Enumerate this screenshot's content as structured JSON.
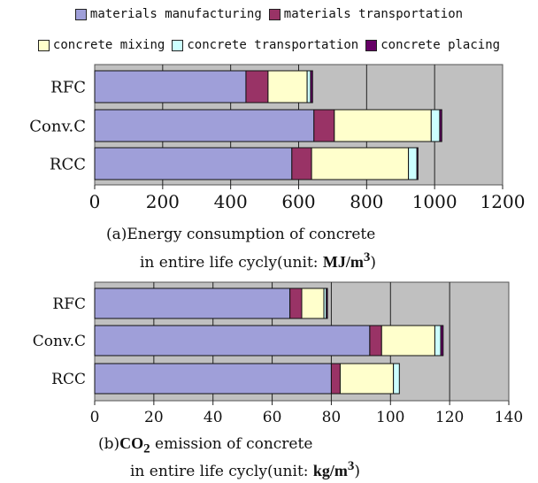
{
  "legend": [
    {
      "label": "materials manufacturing",
      "color": "#9f9fd9"
    },
    {
      "label": "materials transportation",
      "color": "#993366"
    },
    {
      "label": "concrete mixing",
      "color": "#ffffcc"
    },
    {
      "label": "concrete transportation",
      "color": "#ccffff"
    },
    {
      "label": "concrete placing",
      "color": "#660066"
    }
  ],
  "plot_background": "#c0c0c0",
  "captions": {
    "a_line1": "(a)Energy consumption of concrete",
    "a_line2_prefix": "in entire life cycly(unit: ",
    "a_unit": "MJ/m",
    "a_unit_sup": "3",
    "a_suffix": ")",
    "b_line1_prefix": "(b)",
    "b_co2": "CO",
    "b_co2_sub": "2",
    "b_line1_suffix": " emission of concrete",
    "b_line2_prefix": "in entire life cycly(unit: ",
    "b_unit": "kg/m",
    "b_unit_sup": "3",
    "b_suffix": ")"
  },
  "chart_data": [
    {
      "type": "bar",
      "orientation": "horizontal",
      "stacked": true,
      "categories": [
        "RFC",
        "Conv.C",
        "RCC"
      ],
      "series": [
        {
          "name": "materials manufacturing",
          "values": [
            445,
            645,
            580
          ]
        },
        {
          "name": "materials transportation",
          "values": [
            65,
            60,
            58
          ]
        },
        {
          "name": "concrete mixing",
          "values": [
            115,
            285,
            285
          ]
        },
        {
          "name": "concrete transportation",
          "values": [
            10,
            25,
            25
          ]
        },
        {
          "name": "concrete placing",
          "values": [
            6,
            6,
            3
          ]
        }
      ],
      "xlim": [
        0,
        1200
      ],
      "xticks": [
        "0",
        "200",
        "400",
        "600",
        "800",
        "1000",
        "1200"
      ],
      "grid": true
    },
    {
      "type": "bar",
      "orientation": "horizontal",
      "stacked": true,
      "categories": [
        "RFC",
        "Conv.C",
        "RCC"
      ],
      "series": [
        {
          "name": "materials manufacturing",
          "values": [
            66,
            93,
            80
          ]
        },
        {
          "name": "materials transportation",
          "values": [
            4,
            4,
            3
          ]
        },
        {
          "name": "concrete mixing",
          "values": [
            7.5,
            18,
            18
          ]
        },
        {
          "name": "concrete transportation",
          "values": [
            0.8,
            2,
            2
          ]
        },
        {
          "name": "concrete placing",
          "values": [
            0.4,
            0.8,
            0
          ]
        }
      ],
      "xlim": [
        0,
        140
      ],
      "xticks": [
        "0",
        "20",
        "40",
        "60",
        "80",
        "100",
        "120",
        "140"
      ],
      "grid": true
    }
  ]
}
